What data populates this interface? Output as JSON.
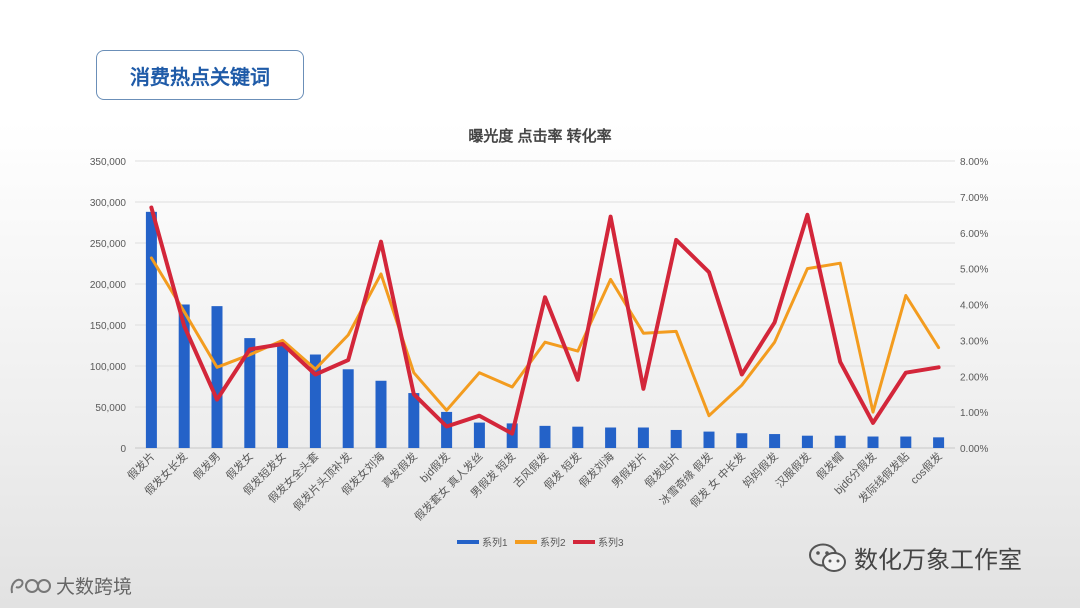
{
  "slide": {
    "title": "消费热点关键词"
  },
  "watermark": {
    "text": "数化万象工作室",
    "icon": "wechat-icon"
  },
  "logo": {
    "text": "大数跨境",
    "icon": "dashuju-logo-icon"
  },
  "colors": {
    "series1": "#2462c8",
    "series2": "#f39c1f",
    "series3": "#d3263a"
  },
  "chart_data": {
    "type": "bar-line-combo",
    "title": "曝光度 点击率 转化率",
    "categories": [
      "假发片",
      "假发女长发",
      "假发男",
      "假发女",
      "假发短发女",
      "假发女全头套",
      "假发片头顶补发",
      "假发女刘海",
      "真发假发",
      "bjd假发",
      "假发套女 真人发丝",
      "男假发 短发",
      "古风假发",
      "假发 短发",
      "假发刘海",
      "男假发片",
      "假发贴片",
      "冰雪奇缘 假发",
      "假发 女 中长发",
      "妈妈假发",
      "汉服假发",
      "假发帽",
      "bjd6分假发",
      "发际线假发贴",
      "cos假发"
    ],
    "left_axis": {
      "min": 0,
      "max": 350000,
      "ticks": [
        "0",
        "50,000",
        "100,000",
        "150,000",
        "200,000",
        "250,000",
        "300,000",
        "350,000"
      ]
    },
    "right_axis": {
      "min": 0,
      "max": 8,
      "ticks": [
        "0.00%",
        "1.00%",
        "2.00%",
        "3.00%",
        "4.00%",
        "5.00%",
        "6.00%",
        "7.00%",
        "8.00%"
      ]
    },
    "series": [
      {
        "name": "系列1",
        "type": "bar",
        "axis": "left",
        "values": [
          288000,
          175000,
          173000,
          134000,
          125000,
          114000,
          96000,
          82000,
          67000,
          44000,
          31000,
          30000,
          27000,
          26000,
          25000,
          25000,
          22000,
          20000,
          18000,
          17000,
          15000,
          15000,
          14000,
          14000,
          13000
        ]
      },
      {
        "name": "系列2",
        "type": "line",
        "axis": "right",
        "values": [
          5.3,
          3.8,
          2.25,
          2.6,
          3.0,
          2.2,
          3.15,
          4.85,
          2.1,
          1.05,
          2.1,
          1.7,
          2.95,
          2.7,
          4.7,
          3.2,
          3.25,
          0.9,
          1.75,
          2.95,
          5.0,
          5.15,
          1.0,
          4.25,
          2.8
        ]
      },
      {
        "name": "系列3",
        "type": "line",
        "axis": "right",
        "values": [
          6.7,
          3.4,
          1.35,
          2.75,
          2.9,
          2.05,
          2.45,
          5.75,
          1.5,
          0.6,
          0.9,
          0.4,
          4.2,
          1.9,
          6.45,
          1.65,
          5.8,
          4.9,
          2.05,
          3.5,
          6.5,
          2.4,
          0.7,
          2.1,
          2.25
        ]
      }
    ],
    "legend": {
      "position": "bottom",
      "items": [
        "系列1",
        "系列2",
        "系列3"
      ]
    },
    "grid": true
  }
}
